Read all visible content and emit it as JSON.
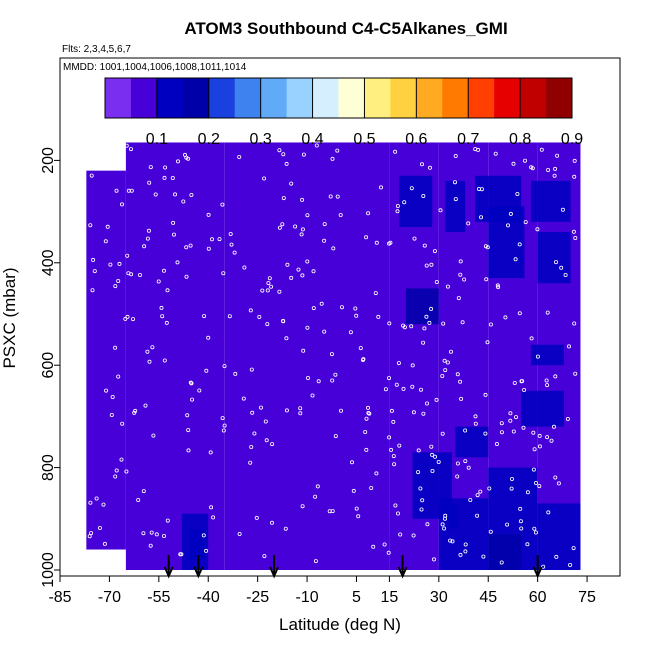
{
  "chart_data": {
    "type": "heatmap",
    "title": "ATOM3 Southbound C4-C5Alkanes_GMI",
    "subtitle_flights": "Flts: 2,3,4,5,6,7",
    "subtitle_dates": "MMDD: 1001,1004,1006,1008,1011,1014",
    "xlabel": "Latitude (deg N)",
    "ylabel": "PSXC (mbar)",
    "xlim": [
      -85,
      85
    ],
    "ylim": [
      1000,
      0
    ],
    "x_ticks": [
      "-85",
      "-70",
      "-55",
      "-40",
      "-25",
      "-10",
      "5",
      "15",
      "30",
      "45",
      "60",
      "75"
    ],
    "x_tick_values": [
      -85,
      -70,
      -55,
      -40,
      -25,
      -10,
      5,
      15,
      30,
      45,
      60,
      75
    ],
    "y_ticks": [
      "200",
      "400",
      "600",
      "800",
      "1000"
    ],
    "y_tick_values": [
      200,
      400,
      600,
      800,
      1000
    ],
    "colorbar": {
      "min": 0,
      "max": 0.9,
      "ticks": [
        "0.1",
        "0.2",
        "0.3",
        "0.4",
        "0.5",
        "0.6",
        "0.7",
        "0.8",
        "0.9"
      ],
      "tick_values": [
        0.1,
        0.2,
        0.3,
        0.4,
        0.5,
        0.6,
        0.7,
        0.8,
        0.9
      ],
      "colors": [
        "#7a2ef0",
        "#4800d8",
        "#0000c0",
        "#0000a8",
        "#1a40e0",
        "#3e82f0",
        "#60aaf8",
        "#9ad2ff",
        "#d6efff",
        "#ffffd6",
        "#ffee80",
        "#ffd040",
        "#ffaa20",
        "#ff7a00",
        "#ff4000",
        "#e60000",
        "#c00000",
        "#900000"
      ]
    },
    "arrows_latitude": [
      -52,
      -43,
      -20,
      19,
      60
    ],
    "field": {
      "columns": [
        {
          "lat": [
            -77,
            -65
          ],
          "p": [
            220,
            960
          ],
          "value": 0.06
        },
        {
          "lat": [
            -65,
            -35
          ],
          "p": [
            165,
            1000
          ],
          "value": 0.05
        },
        {
          "lat": [
            -35,
            15
          ],
          "p": [
            165,
            1000
          ],
          "value": 0.05
        },
        {
          "lat": [
            15,
            30
          ],
          "p": [
            165,
            1000
          ],
          "value": 0.05
        },
        {
          "lat": [
            30,
            45
          ],
          "p": [
            165,
            1000
          ],
          "value": 0.07
        },
        {
          "lat": [
            45,
            60
          ],
          "p": [
            165,
            1000
          ],
          "value": 0.08
        },
        {
          "lat": [
            60,
            73
          ],
          "p": [
            165,
            1000
          ],
          "value": 0.09
        }
      ],
      "patches": [
        {
          "lat": [
            -48,
            -40
          ],
          "p": [
            890,
            1000
          ],
          "value": 0.12
        },
        {
          "lat": [
            -46,
            -41
          ],
          "p": [
            920,
            980
          ],
          "value": 0.14
        },
        {
          "lat": [
            18,
            28
          ],
          "p": [
            230,
            330
          ],
          "value": 0.11
        },
        {
          "lat": [
            20,
            30
          ],
          "p": [
            450,
            520
          ],
          "value": 0.15
        },
        {
          "lat": [
            22,
            34
          ],
          "p": [
            770,
            900
          ],
          "value": 0.11
        },
        {
          "lat": [
            33,
            36
          ],
          "p": [
            870,
            920
          ],
          "value": 0.14
        },
        {
          "lat": [
            32,
            38
          ],
          "p": [
            240,
            340
          ],
          "value": 0.11
        },
        {
          "lat": [
            41,
            55
          ],
          "p": [
            230,
            320
          ],
          "value": 0.13
        },
        {
          "lat": [
            45,
            56
          ],
          "p": [
            290,
            430
          ],
          "value": 0.12
        },
        {
          "lat": [
            58,
            70
          ],
          "p": [
            240,
            320
          ],
          "value": 0.14
        },
        {
          "lat": [
            60,
            70
          ],
          "p": [
            340,
            440
          ],
          "value": 0.11
        },
        {
          "lat": [
            58,
            68
          ],
          "p": [
            560,
            600
          ],
          "value": 0.11
        },
        {
          "lat": [
            55,
            68
          ],
          "p": [
            650,
            720
          ],
          "value": 0.13
        },
        {
          "lat": [
            35,
            45
          ],
          "p": [
            720,
            780
          ],
          "value": 0.11
        },
        {
          "lat": [
            30,
            45
          ],
          "p": [
            860,
            1000
          ],
          "value": 0.12
        },
        {
          "lat": [
            45,
            60
          ],
          "p": [
            800,
            1000
          ],
          "value": 0.13
        },
        {
          "lat": [
            60,
            73
          ],
          "p": [
            870,
            1000
          ],
          "value": 0.12
        },
        {
          "lat": [
            45,
            55
          ],
          "p": [
            930,
            1000
          ],
          "value": 0.16
        }
      ]
    }
  }
}
